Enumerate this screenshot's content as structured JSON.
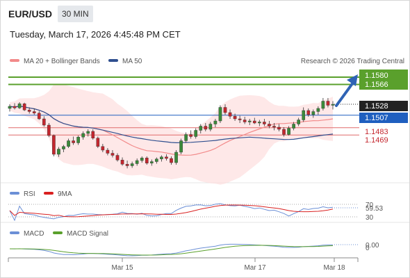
{
  "header": {
    "symbol": "EUR/USD",
    "timeframe": "30 MIN",
    "datetime": "Tuesday, March 17, 2026 4:45:48 PM CET"
  },
  "legend": {
    "ma20_label": "MA 20 + Bollinger Bands",
    "ma50_label": "MA 50",
    "copyright": "Research © 2026 Trading Central"
  },
  "colors": {
    "candle_up": "#3a8a3a",
    "candle_down": "#c4262e",
    "ma20": "#f28a8a",
    "ma50": "#2f4f8f",
    "band_fill": "#fde0e0",
    "resistance": "#5aa02c",
    "pivot": "#1f5fbf",
    "support": "#e06a6a",
    "arrow": "#2f63b5",
    "rsi": "#6b8fd6",
    "rsi_ma": "#d92020",
    "macd": "#6b8fd6",
    "macd_signal": "#5aa02c"
  },
  "price_labels": {
    "r2": "1.1580",
    "r1": "1.1566",
    "last": "1.1528",
    "pivot": "1.1507",
    "s1": "1.1483",
    "s2": "1.1469"
  },
  "rsi_panel": {
    "label": "RSI",
    "ma_label": "9MA",
    "value": "59.53",
    "upper": "70",
    "lower": "30"
  },
  "macd_panel": {
    "label": "MACD",
    "signal_label": "MACD Signal",
    "value": "0.00",
    "zero": "0"
  },
  "xaxis": {
    "labels": [
      "Mar 15",
      "Mar 17",
      "Mar 18"
    ]
  },
  "chart_data": [
    {
      "type": "candlestick",
      "title": "",
      "ylim": [
        1.138,
        1.16
      ],
      "levels": {
        "resistance": [
          1.158,
          1.1566
        ],
        "pivot": 1.1507,
        "support": [
          1.1483,
          1.1469
        ],
        "last": 1.1528
      },
      "ohlc": [
        [
          1.152,
          1.1528,
          1.1514,
          1.1524
        ],
        [
          1.1524,
          1.153,
          1.1518,
          1.1521
        ],
        [
          1.1521,
          1.1532,
          1.1519,
          1.1529
        ],
        [
          1.1529,
          1.1531,
          1.1515,
          1.1517
        ],
        [
          1.1517,
          1.1522,
          1.151,
          1.1514
        ],
        [
          1.1514,
          1.152,
          1.1508,
          1.1511
        ],
        [
          1.1511,
          1.1515,
          1.1498,
          1.15
        ],
        [
          1.15,
          1.1505,
          1.1485,
          1.1488
        ],
        [
          1.1488,
          1.1492,
          1.1465,
          1.1468
        ],
        [
          1.1468,
          1.147,
          1.1428,
          1.1432
        ],
        [
          1.1432,
          1.1446,
          1.1427,
          1.1442
        ],
        [
          1.1442,
          1.145,
          1.1436,
          1.1447
        ],
        [
          1.1447,
          1.1462,
          1.1444,
          1.1458
        ],
        [
          1.1458,
          1.1466,
          1.145,
          1.1454
        ],
        [
          1.1454,
          1.1468,
          1.145,
          1.1465
        ],
        [
          1.1465,
          1.1476,
          1.146,
          1.1472
        ],
        [
          1.1472,
          1.148,
          1.1466,
          1.1476
        ],
        [
          1.1476,
          1.148,
          1.146,
          1.1463
        ],
        [
          1.1463,
          1.1466,
          1.1444,
          1.1447
        ],
        [
          1.1447,
          1.1452,
          1.1436,
          1.144
        ],
        [
          1.144,
          1.1444,
          1.143,
          1.1434
        ],
        [
          1.1434,
          1.144,
          1.1426,
          1.143
        ],
        [
          1.143,
          1.1434,
          1.1418,
          1.1421
        ],
        [
          1.1421,
          1.1426,
          1.141,
          1.1413
        ],
        [
          1.1413,
          1.142,
          1.1405,
          1.141
        ],
        [
          1.141,
          1.1418,
          1.1406,
          1.1414
        ],
        [
          1.1414,
          1.1424,
          1.141,
          1.142
        ],
        [
          1.142,
          1.1428,
          1.1416,
          1.1425
        ],
        [
          1.1425,
          1.1428,
          1.1412,
          1.1415
        ],
        [
          1.1415,
          1.1422,
          1.141,
          1.1418
        ],
        [
          1.1418,
          1.1426,
          1.1414,
          1.1423
        ],
        [
          1.1423,
          1.143,
          1.1418,
          1.1427
        ],
        [
          1.1427,
          1.1432,
          1.142,
          1.1424
        ],
        [
          1.1424,
          1.1428,
          1.1412,
          1.1416
        ],
        [
          1.1416,
          1.144,
          1.1412,
          1.1436
        ],
        [
          1.1436,
          1.1462,
          1.1432,
          1.1458
        ],
        [
          1.1458,
          1.1474,
          1.1454,
          1.147
        ],
        [
          1.147,
          1.1478,
          1.1462,
          1.1466
        ],
        [
          1.1466,
          1.1482,
          1.1462,
          1.1478
        ],
        [
          1.1478,
          1.149,
          1.1472,
          1.1486
        ],
        [
          1.1486,
          1.1492,
          1.1476,
          1.148
        ],
        [
          1.148,
          1.1494,
          1.1476,
          1.149
        ],
        [
          1.149,
          1.15,
          1.1484,
          1.1496
        ],
        [
          1.1496,
          1.1526,
          1.1492,
          1.1522
        ],
        [
          1.1522,
          1.1528,
          1.1508,
          1.1512
        ],
        [
          1.1512,
          1.1518,
          1.15,
          1.1505
        ],
        [
          1.1505,
          1.151,
          1.1496,
          1.15
        ],
        [
          1.15,
          1.1506,
          1.1492,
          1.1498
        ],
        [
          1.1498,
          1.1504,
          1.149,
          1.1494
        ],
        [
          1.1494,
          1.15,
          1.1488,
          1.1496
        ],
        [
          1.1496,
          1.1502,
          1.149,
          1.1492
        ],
        [
          1.1492,
          1.1498,
          1.1486,
          1.1494
        ],
        [
          1.1494,
          1.15,
          1.1486,
          1.149
        ],
        [
          1.149,
          1.1496,
          1.1482,
          1.1486
        ],
        [
          1.1486,
          1.1492,
          1.1478,
          1.1484
        ],
        [
          1.1484,
          1.149,
          1.1476,
          1.148
        ],
        [
          1.148,
          1.1484,
          1.1466,
          1.147
        ],
        [
          1.147,
          1.1486,
          1.1468,
          1.1482
        ],
        [
          1.1482,
          1.1494,
          1.1478,
          1.149
        ],
        [
          1.149,
          1.1502,
          1.1486,
          1.1498
        ],
        [
          1.1498,
          1.1522,
          1.1494,
          1.1516
        ],
        [
          1.1516,
          1.152,
          1.1504,
          1.1508
        ],
        [
          1.1508,
          1.1518,
          1.1502,
          1.1514
        ],
        [
          1.1514,
          1.1524,
          1.1508,
          1.152
        ],
        [
          1.152,
          1.154,
          1.1516,
          1.1534
        ],
        [
          1.1534,
          1.154,
          1.1522,
          1.1526
        ],
        [
          1.1526,
          1.1534,
          1.1518,
          1.1528
        ]
      ]
    },
    {
      "type": "line",
      "title": "RSI",
      "series": [
        {
          "name": "RSI"
        },
        {
          "name": "9MA"
        }
      ],
      "ylim": [
        0,
        100
      ],
      "levels": [
        70,
        30
      ],
      "last": 59.53
    },
    {
      "type": "line",
      "title": "MACD",
      "series": [
        {
          "name": "MACD"
        },
        {
          "name": "MACD Signal"
        }
      ],
      "last": 0.0
    }
  ]
}
